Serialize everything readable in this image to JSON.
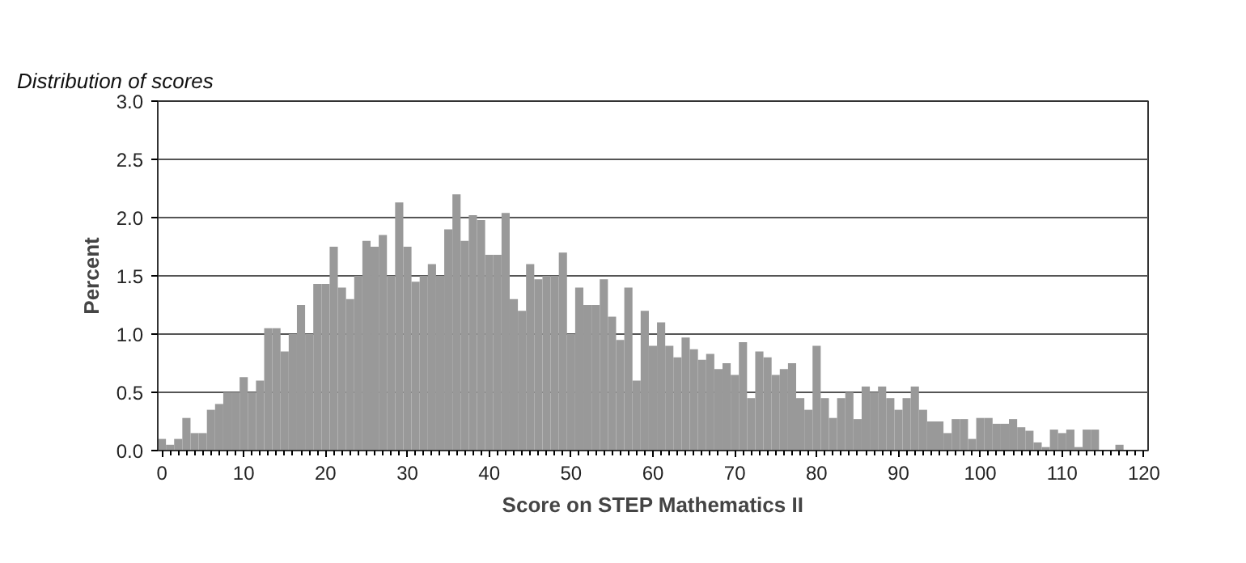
{
  "chart_data": {
    "type": "histogram",
    "title": "Distribution of scores",
    "xlabel": "Score on STEP Mathematics II",
    "ylabel": "Percent",
    "bins": [
      -0.5,
      0.5,
      1.5,
      2.5,
      3.5,
      4.5,
      5.5,
      6.5,
      7.5,
      8.5,
      9.5,
      10.5,
      11.5,
      12.5,
      13.5,
      14.5,
      15.5,
      16.5,
      17.5,
      18.5,
      19.5,
      20.5,
      21.5,
      22.5,
      23.5,
      24.5,
      25.5,
      26.5,
      27.5,
      28.5,
      29.5,
      30.5,
      31.5,
      32.5,
      33.5,
      34.5,
      35.5,
      36.5,
      37.5,
      38.5,
      39.5,
      40.5,
      41.5,
      42.5,
      43.5,
      44.5,
      45.5,
      46.5,
      47.5,
      48.5,
      49.5,
      50.5,
      51.5,
      52.5,
      53.5,
      54.5,
      55.5,
      56.5,
      57.5,
      58.5,
      59.5,
      60.5,
      61.5,
      62.5,
      63.5,
      64.5,
      65.5,
      66.5,
      67.5,
      68.5,
      69.5,
      70.5,
      71.5,
      72.5,
      73.5,
      74.5,
      75.5,
      76.5,
      77.5,
      78.5,
      79.5,
      80.5,
      81.5,
      82.5,
      83.5,
      84.5,
      85.5,
      86.5,
      87.5,
      88.5,
      89.5,
      90.5,
      91.5,
      92.5,
      93.5,
      94.5,
      95.5,
      96.5,
      97.5,
      98.5,
      99.5,
      100.5,
      101.5,
      102.5,
      103.5,
      104.5,
      105.5,
      106.5,
      107.5,
      108.5,
      109.5,
      110.5,
      111.5,
      112.5,
      113.5,
      114.5,
      115.5,
      116.5,
      117.5,
      118.5,
      119.5,
      120.5
    ],
    "values": [
      0.1,
      0.05,
      0.1,
      0.28,
      0.15,
      0.15,
      0.35,
      0.4,
      0.5,
      0.5,
      0.63,
      0.5,
      0.6,
      1.05,
      1.05,
      0.85,
      1.0,
      1.25,
      1.0,
      1.43,
      1.43,
      1.75,
      1.4,
      1.3,
      1.5,
      1.8,
      1.75,
      1.85,
      1.5,
      2.13,
      1.75,
      1.45,
      1.5,
      1.6,
      1.5,
      1.9,
      2.2,
      1.8,
      2.02,
      1.98,
      1.68,
      1.68,
      2.04,
      1.3,
      1.2,
      1.6,
      1.47,
      1.5,
      1.5,
      1.7,
      1.0,
      1.4,
      1.25,
      1.25,
      1.47,
      1.15,
      0.95,
      1.4,
      0.6,
      1.2,
      0.9,
      1.1,
      0.9,
      0.8,
      0.97,
      0.87,
      0.78,
      0.83,
      0.7,
      0.75,
      0.65,
      0.93,
      0.45,
      0.85,
      0.8,
      0.65,
      0.7,
      0.75,
      0.45,
      0.35,
      0.9,
      0.45,
      0.28,
      0.45,
      0.5,
      0.27,
      0.55,
      0.5,
      0.55,
      0.45,
      0.35,
      0.45,
      0.55,
      0.35,
      0.25,
      0.25,
      0.15,
      0.27,
      0.27,
      0.1,
      0.28,
      0.28,
      0.23,
      0.23,
      0.27,
      0.2,
      0.17,
      0.07,
      0.03,
      0.18,
      0.15,
      0.18,
      0.03,
      0.18,
      0.18,
      0,
      0,
      0.05,
      0,
      0,
      0
    ],
    "color": "#999999",
    "xlim": [
      -0.5,
      120.5
    ],
    "ylim": [
      0,
      3.0
    ],
    "xticks": [
      0,
      10,
      20,
      30,
      40,
      50,
      60,
      70,
      80,
      90,
      100,
      110,
      120
    ],
    "yticks": [
      {
        "value": 0,
        "label": "0.0"
      },
      {
        "value": 0.5,
        "label": "0.5"
      },
      {
        "value": 1.0,
        "label": "1.0"
      },
      {
        "value": 1.5,
        "label": "1.5"
      },
      {
        "value": 2.0,
        "label": "2.0"
      },
      {
        "value": 2.5,
        "label": "2.5"
      },
      {
        "value": 3.0,
        "label": "3.0"
      }
    ],
    "grid": "y"
  }
}
